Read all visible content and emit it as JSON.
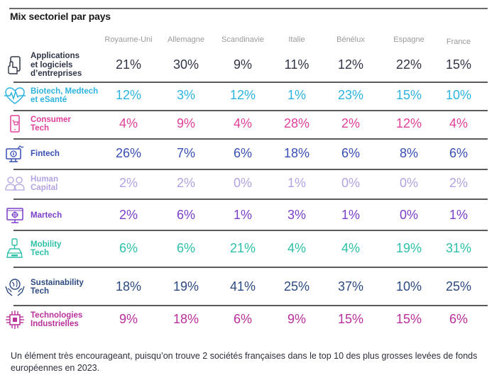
{
  "chart_data": {
    "type": "table",
    "title": "Mix sectoriel par pays",
    "columns": [
      "Royaume-Uni",
      "Allemagne",
      "Scandinavie",
      "Italie",
      "Bénélux",
      "Espagne",
      "France"
    ],
    "rows": [
      {
        "sector": "Applications et logiciels d'entreprises",
        "label_lines": [
          "Applications",
          "et logiciels",
          "d’entreprises"
        ],
        "icon": "smartphone-touch-icon",
        "color": "#2f3547",
        "values": [
          "21%",
          "30%",
          "9%",
          "11%",
          "12%",
          "22%",
          "15%"
        ]
      },
      {
        "sector": "Biotech, Medtech et eSanté",
        "label_lines": [
          "Biotech, Medtech",
          "et eSanté"
        ],
        "icon": "heartbeat-icon",
        "color": "#2db3e0",
        "values": [
          "12%",
          "3%",
          "12%",
          "1%",
          "23%",
          "15%",
          "10%"
        ]
      },
      {
        "sector": "Consumer Tech",
        "label_lines": [
          "Consumer",
          "Tech"
        ],
        "icon": "shopping-phone-icon",
        "color": "#e0409a",
        "values": [
          "4%",
          "9%",
          "4%",
          "28%",
          "2%",
          "12%",
          "4%"
        ]
      },
      {
        "sector": "Fintech",
        "label_lines": [
          "Fintech"
        ],
        "icon": "monitor-coin-icon",
        "color": "#3a4fb5",
        "values": [
          "26%",
          "7%",
          "6%",
          "18%",
          "6%",
          "8%",
          "6%"
        ]
      },
      {
        "sector": "Human Capital",
        "label_lines": [
          "Human",
          "Capital"
        ],
        "icon": "people-icon",
        "color": "#b3a3e0",
        "values": [
          "2%",
          "2%",
          "0%",
          "1%",
          "0%",
          "0%",
          "2%"
        ]
      },
      {
        "sector": "Martech",
        "label_lines": [
          "Martech"
        ],
        "icon": "monitor-target-icon",
        "color": "#7a3fc8",
        "values": [
          "2%",
          "6%",
          "1%",
          "3%",
          "1%",
          "0%",
          "1%"
        ]
      },
      {
        "sector": "Mobility Tech",
        "label_lines": [
          "Mobility",
          "Tech"
        ],
        "icon": "car-plug-icon",
        "color": "#2ec0a8",
        "values": [
          "6%",
          "6%",
          "21%",
          "4%",
          "4%",
          "19%",
          "31%"
        ]
      },
      {
        "sector": "Sustainability Tech",
        "label_lines": [
          "Sustainability",
          "Tech"
        ],
        "icon": "hands-globe-icon",
        "color": "#2c4a80",
        "values": [
          "18%",
          "19%",
          "41%",
          "25%",
          "37%",
          "10%",
          "25%"
        ]
      },
      {
        "sector": "Technologies Industrielles",
        "label_lines": [
          "Technologies",
          "Industrielles"
        ],
        "icon": "chip-icon",
        "color": "#b8309a",
        "values": [
          "9%",
          "18%",
          "6%",
          "9%",
          "15%",
          "15%",
          "6%"
        ]
      }
    ]
  },
  "footer": {
    "text": "Un élément très encourageant, puisqu’on trouve 2 sociétés françaises dans le top 10 des plus grosses levées de fonds européennes en 2023."
  }
}
